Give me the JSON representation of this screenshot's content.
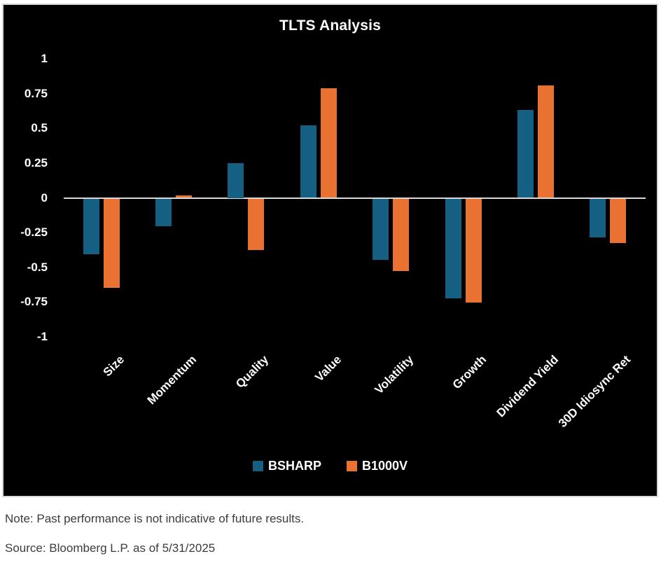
{
  "chart_data": {
    "type": "bar",
    "title": "TLTS Analysis",
    "categories": [
      "Size",
      "Momentum",
      "Quality",
      "Value",
      "Volatility",
      "Growth",
      "Dividend Yield",
      "30D Idiosync Ret"
    ],
    "series": [
      {
        "name": "BSHARP",
        "color": "#156082",
        "values": [
          -0.4,
          -0.2,
          0.25,
          0.52,
          -0.44,
          -0.72,
          0.63,
          -0.28
        ]
      },
      {
        "name": "B1000V",
        "color": "#E97132",
        "values": [
          -0.64,
          0.02,
          -0.37,
          0.79,
          -0.52,
          -0.75,
          0.81,
          -0.32
        ]
      }
    ],
    "ylim": [
      -1,
      1
    ],
    "ytick_labels": [
      "1",
      "0.75",
      "0.5",
      "0.25",
      "0",
      "-0.25",
      "-0.5",
      "-0.75",
      "-1"
    ],
    "grid": false,
    "legend_position": "bottom",
    "plot_background": "#000000",
    "text_color": "#ffffff",
    "zero_line_color": "#d9d9d9"
  },
  "footer": {
    "note": "Note: Past performance is not indicative of future results.",
    "source": "Source: Bloomberg L.P. as of 5/31/2025"
  }
}
